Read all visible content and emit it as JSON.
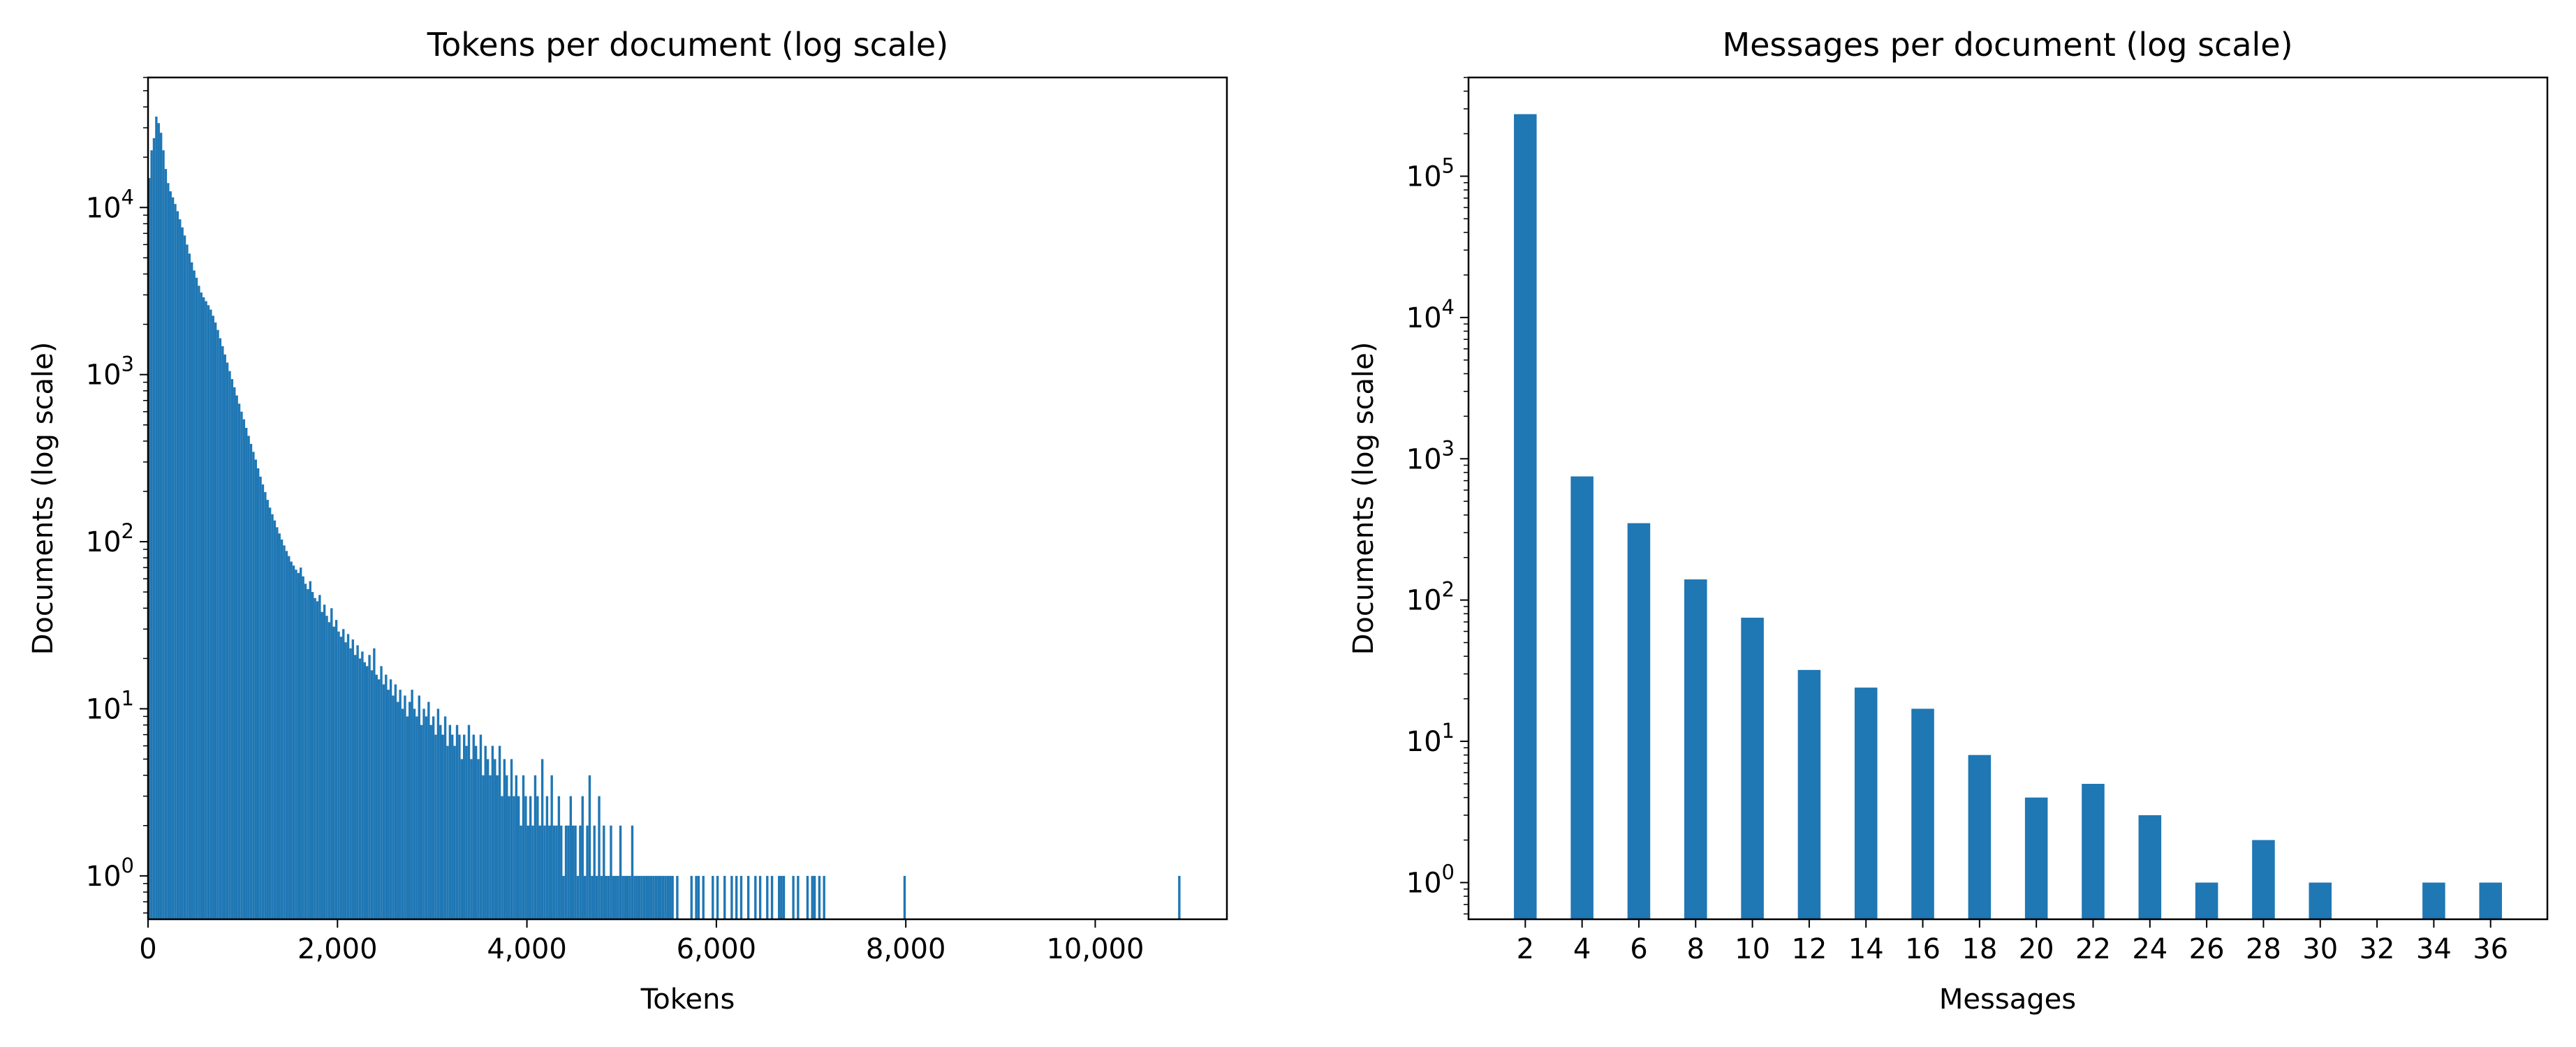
{
  "chart_data": [
    {
      "type": "bar",
      "title": "Tokens per document (log scale)",
      "xlabel": "Tokens",
      "ylabel": "Documents (log scale)",
      "yscale": "log",
      "xlim": [
        0,
        11390
      ],
      "ylim": [
        0.55,
        60000
      ],
      "grid": false,
      "color": "#1f77b4",
      "x_ticks": [
        "0",
        "2,000",
        "4,000",
        "6,000",
        "8,000",
        "10,000"
      ],
      "y_ticks": [
        {
          "base": "10",
          "exp": "0"
        },
        {
          "base": "10",
          "exp": "1"
        },
        {
          "base": "10",
          "exp": "2"
        },
        {
          "base": "10",
          "exp": "3"
        },
        {
          "base": "10",
          "exp": "4"
        }
      ],
      "bin_width": 25,
      "bins_start": [
        0,
        25,
        50,
        75,
        100,
        125,
        150,
        175,
        200,
        225,
        250,
        275,
        300,
        325,
        350,
        375,
        400,
        425,
        450,
        475,
        500,
        525,
        550,
        575,
        600,
        625,
        650,
        675,
        700,
        725,
        750,
        775,
        800,
        825,
        850,
        875,
        900,
        925,
        950,
        975,
        1000,
        1025,
        1050,
        1075,
        1100,
        1125,
        1150,
        1175,
        1200,
        1225,
        1250,
        1275,
        1300,
        1325,
        1350,
        1375,
        1400,
        1425,
        1450,
        1475,
        1500,
        1525,
        1550,
        1575,
        1600,
        1625,
        1650,
        1675,
        1700,
        1725,
        1750,
        1775,
        1800,
        1825,
        1850,
        1875,
        1900,
        1925,
        1950,
        1975,
        2000,
        2025,
        2050,
        2075,
        2100,
        2125,
        2150,
        2175,
        2200,
        2225,
        2250,
        2275,
        2300,
        2325,
        2350,
        2375,
        2400,
        2425,
        2450,
        2475,
        2500,
        2525,
        2550,
        2575,
        2600,
        2625,
        2650,
        2675,
        2700,
        2725,
        2750,
        2775,
        2800,
        2825,
        2850,
        2875,
        2900,
        2925,
        2950,
        2975,
        3000,
        3025,
        3050,
        3075,
        3100,
        3125,
        3150,
        3175,
        3200,
        3225,
        3250,
        3275,
        3300,
        3325,
        3350,
        3375,
        3400,
        3425,
        3450,
        3475,
        3500,
        3525,
        3550,
        3575,
        3600,
        3625,
        3650,
        3675,
        3700,
        3725,
        3750,
        3775,
        3800,
        3825,
        3850,
        3875,
        3900,
        3925,
        3950,
        3975,
        4000,
        4025,
        4050,
        4075,
        4100,
        4125,
        4150,
        4175,
        4200,
        4225,
        4250,
        4275,
        4300,
        4325,
        4350,
        4375,
        4400,
        4425,
        4450,
        4475,
        4500,
        4525,
        4550,
        4575,
        4600,
        4625,
        4650,
        4675,
        4700,
        4725,
        4750,
        4775,
        4800,
        4825,
        4850,
        4875,
        4900,
        4925,
        4950,
        4975,
        5000,
        5025,
        5050,
        5075,
        5100,
        5125,
        5150,
        5175,
        5200,
        5225,
        5250,
        5275,
        5300,
        5325,
        5350,
        5375,
        5400,
        5425,
        5450,
        5475,
        5500,
        5525,
        5575,
        5725,
        5775,
        5800,
        5850,
        5950,
        6000,
        6075,
        6150,
        6200,
        6250,
        6325,
        6400,
        6450,
        6525,
        6575,
        6650,
        6675,
        6700,
        6800,
        6850,
        6950,
        7000,
        7025,
        7075,
        7125,
        7975,
        10875
      ],
      "counts": [
        15000,
        22000,
        26000,
        35000,
        32000,
        28000,
        22000,
        17000,
        14000,
        12500,
        11500,
        10500,
        9500,
        8500,
        7600,
        6800,
        6000,
        5300,
        4700,
        4200,
        3800,
        3400,
        3100,
        2900,
        2750,
        2600,
        2450,
        2250,
        2050,
        1850,
        1650,
        1480,
        1320,
        1180,
        1050,
        940,
        840,
        750,
        670,
        600,
        540,
        480,
        430,
        385,
        345,
        310,
        275,
        245,
        220,
        198,
        178,
        160,
        146,
        134,
        122,
        112,
        103,
        95,
        88,
        82,
        76,
        72,
        68,
        65,
        70,
        62,
        56,
        52,
        58,
        50,
        46,
        44,
        48,
        38,
        42,
        36,
        33,
        40,
        31,
        34,
        29,
        27,
        30,
        25,
        28,
        23,
        26,
        21,
        24,
        20,
        22,
        19,
        18,
        21,
        17,
        23,
        16,
        15,
        18,
        14,
        16,
        13,
        15,
        12,
        14,
        11,
        13,
        10,
        12,
        9,
        11,
        13,
        10,
        9,
        12,
        8,
        10,
        9,
        11,
        8,
        9,
        7,
        10,
        8,
        7,
        9,
        6,
        8,
        7,
        6,
        8,
        7,
        5,
        7,
        6,
        8,
        5,
        7,
        6,
        5,
        7,
        4,
        6,
        5,
        4,
        6,
        5,
        4,
        6,
        3,
        5,
        4,
        3,
        5,
        3,
        4,
        3,
        2,
        4,
        3,
        2,
        3,
        2,
        4,
        3,
        2,
        5,
        2,
        3,
        2,
        4,
        2,
        2,
        3,
        2,
        1,
        2,
        2,
        3,
        2,
        2,
        1,
        2,
        3,
        1,
        2,
        4,
        1,
        2,
        1,
        3,
        1,
        2,
        1,
        1,
        2,
        1,
        1,
        1,
        2,
        1,
        1,
        1,
        1,
        2,
        1,
        1,
        1,
        1,
        1,
        1,
        1,
        1,
        1,
        1,
        1,
        1,
        1,
        1,
        1,
        1,
        1,
        1,
        1,
        1,
        1,
        1,
        1,
        1,
        1,
        1,
        1,
        1,
        1,
        1,
        1,
        1,
        1,
        1,
        1,
        1,
        1,
        1,
        1,
        1,
        1,
        1,
        1,
        1,
        1,
        1,
        1
      ]
    },
    {
      "type": "bar",
      "title": "Messages per document (log scale)",
      "xlabel": "Messages",
      "ylabel": "Documents (log scale)",
      "yscale": "log",
      "xlim": [
        0,
        38
      ],
      "ylim": [
        0.55,
        500000
      ],
      "grid": false,
      "color": "#1f77b4",
      "x_ticks": [
        "2",
        "4",
        "6",
        "8",
        "10",
        "12",
        "14",
        "16",
        "18",
        "20",
        "22",
        "24",
        "26",
        "28",
        "30",
        "32",
        "34",
        "36"
      ],
      "y_ticks": [
        {
          "base": "10",
          "exp": "0"
        },
        {
          "base": "10",
          "exp": "1"
        },
        {
          "base": "10",
          "exp": "2"
        },
        {
          "base": "10",
          "exp": "3"
        },
        {
          "base": "10",
          "exp": "4"
        },
        {
          "base": "10",
          "exp": "5"
        }
      ],
      "categories": [
        2,
        4,
        6,
        8,
        10,
        12,
        14,
        16,
        18,
        20,
        22,
        24,
        26,
        28,
        30,
        32,
        34,
        36
      ],
      "values": [
        275000,
        750,
        350,
        140,
        75,
        32,
        24,
        17,
        8,
        4,
        5,
        3,
        1,
        2,
        1,
        0,
        1,
        1
      ]
    }
  ]
}
